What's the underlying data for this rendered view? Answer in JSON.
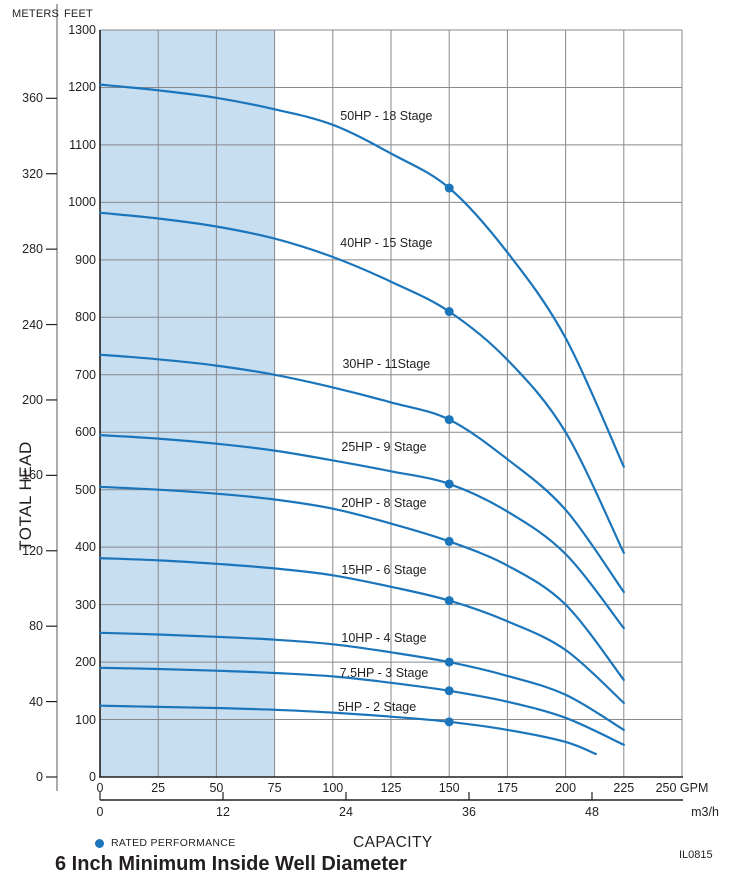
{
  "title": "6 Inch Minimum Inside Well Diameter",
  "doc_code": "IL0815",
  "axes": {
    "meters_label": "METERS",
    "feet_label": "FEET",
    "total_head_label": "TOTAL HEAD",
    "capacity_label": "CAPACITY",
    "gpm_unit": "GPM",
    "m3h_unit": "m3/h"
  },
  "legend": {
    "rated_label": "RATED PERFORMANCE"
  },
  "colors": {
    "curve_blue": "#1b75bb",
    "shade_blue": "#c7ddf0",
    "grid_gray": "#87898c",
    "axis_black": "#231f20",
    "text_black": "#231f20"
  },
  "chart_data": {
    "type": "line",
    "title": "6 Inch Minimum Inside Well Diameter",
    "xlabel": "CAPACITY",
    "ylabel": "TOTAL HEAD",
    "x_units": [
      "GPM",
      "m3/h"
    ],
    "y_units": [
      "FEET",
      "METERS"
    ],
    "xlim_gpm": [
      0,
      250
    ],
    "ylim_feet": [
      0,
      1300
    ],
    "grid": true,
    "gpm_ticks": [
      0,
      25,
      50,
      75,
      100,
      125,
      150,
      175,
      200,
      225,
      250
    ],
    "m3h_ticks": [
      0,
      12,
      24,
      36,
      48
    ],
    "feet_ticks": [
      0,
      100,
      200,
      300,
      400,
      500,
      600,
      700,
      800,
      900,
      1000,
      1100,
      1200,
      1300
    ],
    "meters_ticks": [
      0,
      40,
      80,
      120,
      160,
      200,
      240,
      280,
      320,
      360
    ],
    "shaded_region_gpm": [
      0,
      75
    ],
    "rated_flow_gpm": 150,
    "legend_entries": [
      "RATED PERFORMANCE"
    ],
    "series": [
      {
        "label": "50HP - 18 Stage",
        "label_pos_gpm_feet": [
          123,
          1150
        ],
        "rated_point_gpm_feet": [
          150,
          1025
        ],
        "points_gpm_feet": [
          [
            0,
            1205
          ],
          [
            25,
            1195
          ],
          [
            50,
            1182
          ],
          [
            75,
            1162
          ],
          [
            100,
            1135
          ],
          [
            125,
            1085
          ],
          [
            150,
            1025
          ],
          [
            175,
            913
          ],
          [
            200,
            764
          ],
          [
            225,
            540
          ]
        ]
      },
      {
        "label": "40HP - 15 Stage",
        "label_pos_gpm_feet": [
          123,
          930
        ],
        "rated_point_gpm_feet": [
          150,
          810
        ],
        "points_gpm_feet": [
          [
            0,
            982
          ],
          [
            25,
            972
          ],
          [
            50,
            958
          ],
          [
            75,
            937
          ],
          [
            100,
            905
          ],
          [
            125,
            862
          ],
          [
            150,
            810
          ],
          [
            175,
            726
          ],
          [
            200,
            600
          ],
          [
            225,
            390
          ]
        ]
      },
      {
        "label": "30HP - 11Stage",
        "label_pos_gpm_feet": [
          123,
          718
        ],
        "rated_point_gpm_feet": [
          150,
          622
        ],
        "points_gpm_feet": [
          [
            0,
            735
          ],
          [
            25,
            727
          ],
          [
            50,
            716
          ],
          [
            75,
            700
          ],
          [
            100,
            678
          ],
          [
            125,
            652
          ],
          [
            150,
            622
          ],
          [
            175,
            553
          ],
          [
            200,
            465
          ],
          [
            225,
            322
          ]
        ]
      },
      {
        "label": "25HP - 9 Stage",
        "label_pos_gpm_feet": [
          122,
          575
        ],
        "rated_point_gpm_feet": [
          150,
          510
        ],
        "points_gpm_feet": [
          [
            0,
            595
          ],
          [
            25,
            589
          ],
          [
            50,
            580
          ],
          [
            75,
            568
          ],
          [
            100,
            551
          ],
          [
            125,
            532
          ],
          [
            150,
            510
          ],
          [
            175,
            462
          ],
          [
            200,
            388
          ],
          [
            225,
            259
          ]
        ]
      },
      {
        "label": "20HP - 8 Stage",
        "label_pos_gpm_feet": [
          122,
          477
        ],
        "rated_point_gpm_feet": [
          150,
          410
        ],
        "points_gpm_feet": [
          [
            0,
            505
          ],
          [
            25,
            500
          ],
          [
            50,
            493
          ],
          [
            75,
            483
          ],
          [
            100,
            467
          ],
          [
            125,
            441
          ],
          [
            150,
            410
          ],
          [
            175,
            368
          ],
          [
            200,
            300
          ],
          [
            225,
            169
          ]
        ]
      },
      {
        "label": "15HP - 6 Stage",
        "label_pos_gpm_feet": [
          122,
          360
        ],
        "rated_point_gpm_feet": [
          150,
          307
        ],
        "points_gpm_feet": [
          [
            0,
            381
          ],
          [
            25,
            377
          ],
          [
            50,
            371
          ],
          [
            75,
            363
          ],
          [
            100,
            351
          ],
          [
            125,
            331
          ],
          [
            150,
            307
          ],
          [
            175,
            271
          ],
          [
            200,
            221
          ],
          [
            225,
            129
          ]
        ]
      },
      {
        "label": "10HP - 4 Stage",
        "label_pos_gpm_feet": [
          122,
          242
        ],
        "rated_point_gpm_feet": [
          150,
          200
        ],
        "points_gpm_feet": [
          [
            0,
            251
          ],
          [
            25,
            248
          ],
          [
            50,
            244
          ],
          [
            75,
            239
          ],
          [
            100,
            231
          ],
          [
            125,
            217
          ],
          [
            150,
            200
          ],
          [
            175,
            176
          ],
          [
            200,
            143
          ],
          [
            225,
            82
          ]
        ]
      },
      {
        "label": "7.5HP - 3 Stage",
        "label_pos_gpm_feet": [
          122,
          181
        ],
        "rated_point_gpm_feet": [
          150,
          150
        ],
        "points_gpm_feet": [
          [
            0,
            190
          ],
          [
            25,
            188
          ],
          [
            50,
            185
          ],
          [
            75,
            181
          ],
          [
            100,
            175
          ],
          [
            125,
            164
          ],
          [
            150,
            150
          ],
          [
            175,
            131
          ],
          [
            200,
            103
          ],
          [
            225,
            56
          ]
        ]
      },
      {
        "label": "5HP - 2 Stage",
        "label_pos_gpm_feet": [
          119,
          122
        ],
        "rated_point_gpm_feet": [
          150,
          96
        ],
        "points_gpm_feet": [
          [
            0,
            124
          ],
          [
            25,
            122
          ],
          [
            50,
            120
          ],
          [
            75,
            117
          ],
          [
            100,
            112
          ],
          [
            125,
            105
          ],
          [
            150,
            96
          ],
          [
            175,
            82
          ],
          [
            200,
            61
          ],
          [
            213,
            40
          ]
        ]
      }
    ]
  }
}
